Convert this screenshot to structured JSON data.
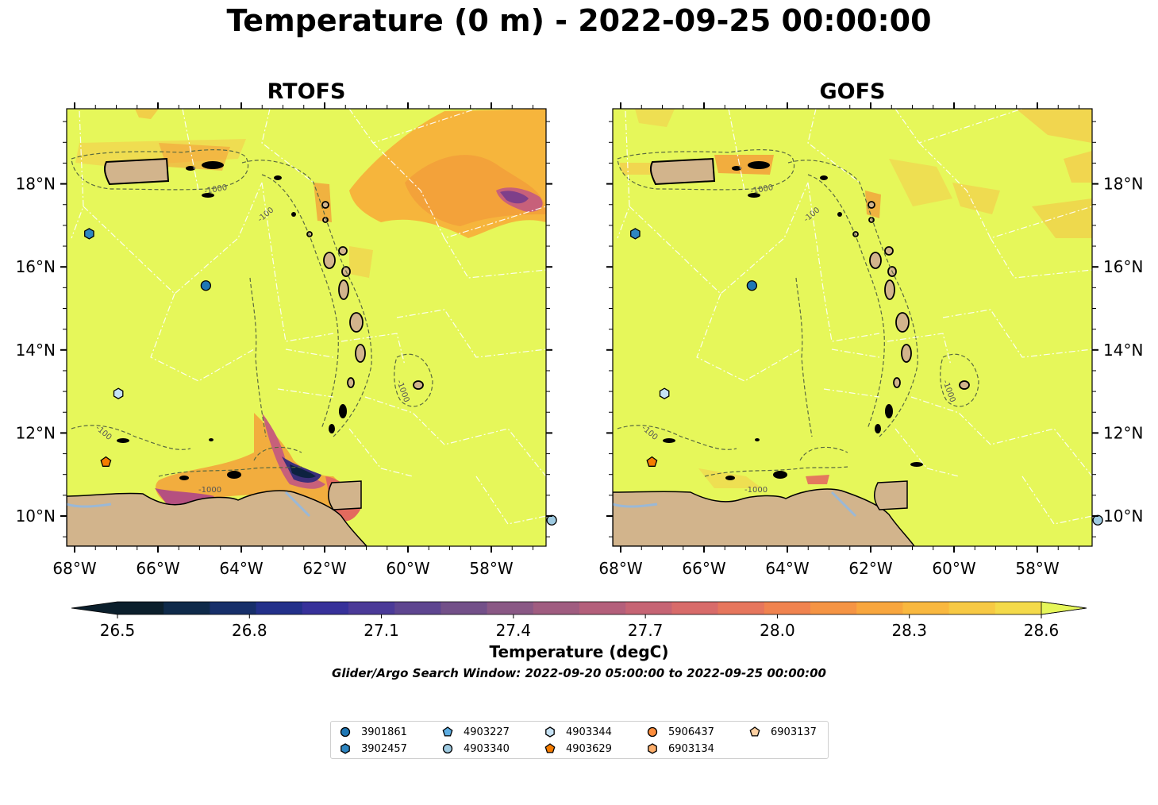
{
  "title": "Temperature (0 m) - 2022-09-25 00:00:00",
  "panels": [
    {
      "title": "RTOFS",
      "model": "rtofs"
    },
    {
      "title": "GOFS",
      "model": "gofs"
    }
  ],
  "lon_ticks": [
    "68°W",
    "66°W",
    "64°W",
    "62°W",
    "60°W",
    "58°W"
  ],
  "lat_ticks": [
    "10°N",
    "12°N",
    "14°N",
    "16°N",
    "18°N"
  ],
  "contour_labels": [
    "-100",
    "-1000"
  ],
  "colorbar": {
    "ticks": [
      "26.5",
      "26.8",
      "27.1",
      "27.4",
      "27.7",
      "28.0",
      "28.3",
      "28.6"
    ],
    "label": "Temperature (degC)",
    "range": [
      26.5,
      28.6
    ],
    "extend": "both"
  },
  "subtitle": "Glider/Argo Search Window: 2022-09-20 05:00:00 to 2022-09-25 00:00:00",
  "legend": {
    "items": [
      {
        "label": "3901861",
        "marker": "circle",
        "color": "#1f77b4"
      },
      {
        "label": "3902457",
        "marker": "hexagon",
        "color": "#2e86c1"
      },
      {
        "label": "4903227",
        "marker": "pentagon",
        "color": "#5dade2"
      },
      {
        "label": "4903340",
        "marker": "circle",
        "color": "#9ecae1"
      },
      {
        "label": "4903344",
        "marker": "hexagon",
        "color": "#c6e2f5"
      },
      {
        "label": "4903629",
        "marker": "pentagon",
        "color": "#f57c00"
      },
      {
        "label": "5906437",
        "marker": "circle",
        "color": "#fd8d3c"
      },
      {
        "label": "6903134",
        "marker": "hexagon",
        "color": "#fdae6b"
      },
      {
        "label": "6903137",
        "marker": "pentagon",
        "color": "#fdd0a2"
      }
    ]
  },
  "floats_plotted": [
    {
      "id": "3901861",
      "lon": -64.85,
      "lat": 15.55
    },
    {
      "id": "3902457",
      "lon": -67.65,
      "lat": 16.8
    },
    {
      "id": "4903340",
      "lon": -56.55,
      "lat": 9.9
    },
    {
      "id": "4903344",
      "lon": -66.95,
      "lat": 12.95
    },
    {
      "id": "4903629",
      "lon": -67.25,
      "lat": 11.3
    }
  ],
  "colors": {
    "background_sea": "#e6f75a",
    "land": "#d2b48c",
    "warm": "#f9a43a",
    "cool": "#1a1f5e"
  }
}
